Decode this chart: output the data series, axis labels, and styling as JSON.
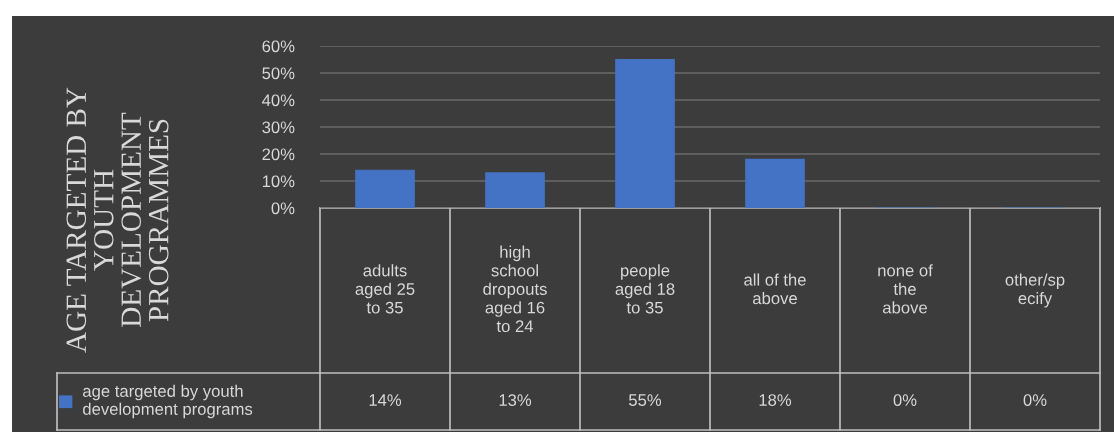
{
  "chart_data": {
    "type": "bar",
    "ylabel": "AGE TARGETED BY\nYOUTH\nDEVELOPMENT\nPROGRAMMES",
    "categories": [
      "adults\naged 25\nto 35",
      "high\nschool\ndropouts\naged 16\nto 24",
      "people\naged 18\nto 35",
      "all of the\nabove",
      "none of\nthe\nabove",
      "other/sp\necify"
    ],
    "series": [
      {
        "name": "age targeted by youth\ndevelopment programs",
        "color": "#4472c4",
        "values": [
          14,
          13,
          55,
          18,
          0,
          0
        ],
        "value_labels": [
          "14%",
          "13%",
          "55%",
          "18%",
          "0%",
          "0%"
        ]
      }
    ],
    "ylim": [
      0,
      60
    ],
    "yticks": [
      {
        "value": 0,
        "label": "0%"
      },
      {
        "value": 10,
        "label": "10%"
      },
      {
        "value": 20,
        "label": "20%"
      },
      {
        "value": 30,
        "label": "30%"
      },
      {
        "value": 40,
        "label": "40%"
      },
      {
        "value": 50,
        "label": "50%"
      },
      {
        "value": 60,
        "label": "60%"
      }
    ],
    "grid": "y",
    "legend": "bottom left"
  }
}
